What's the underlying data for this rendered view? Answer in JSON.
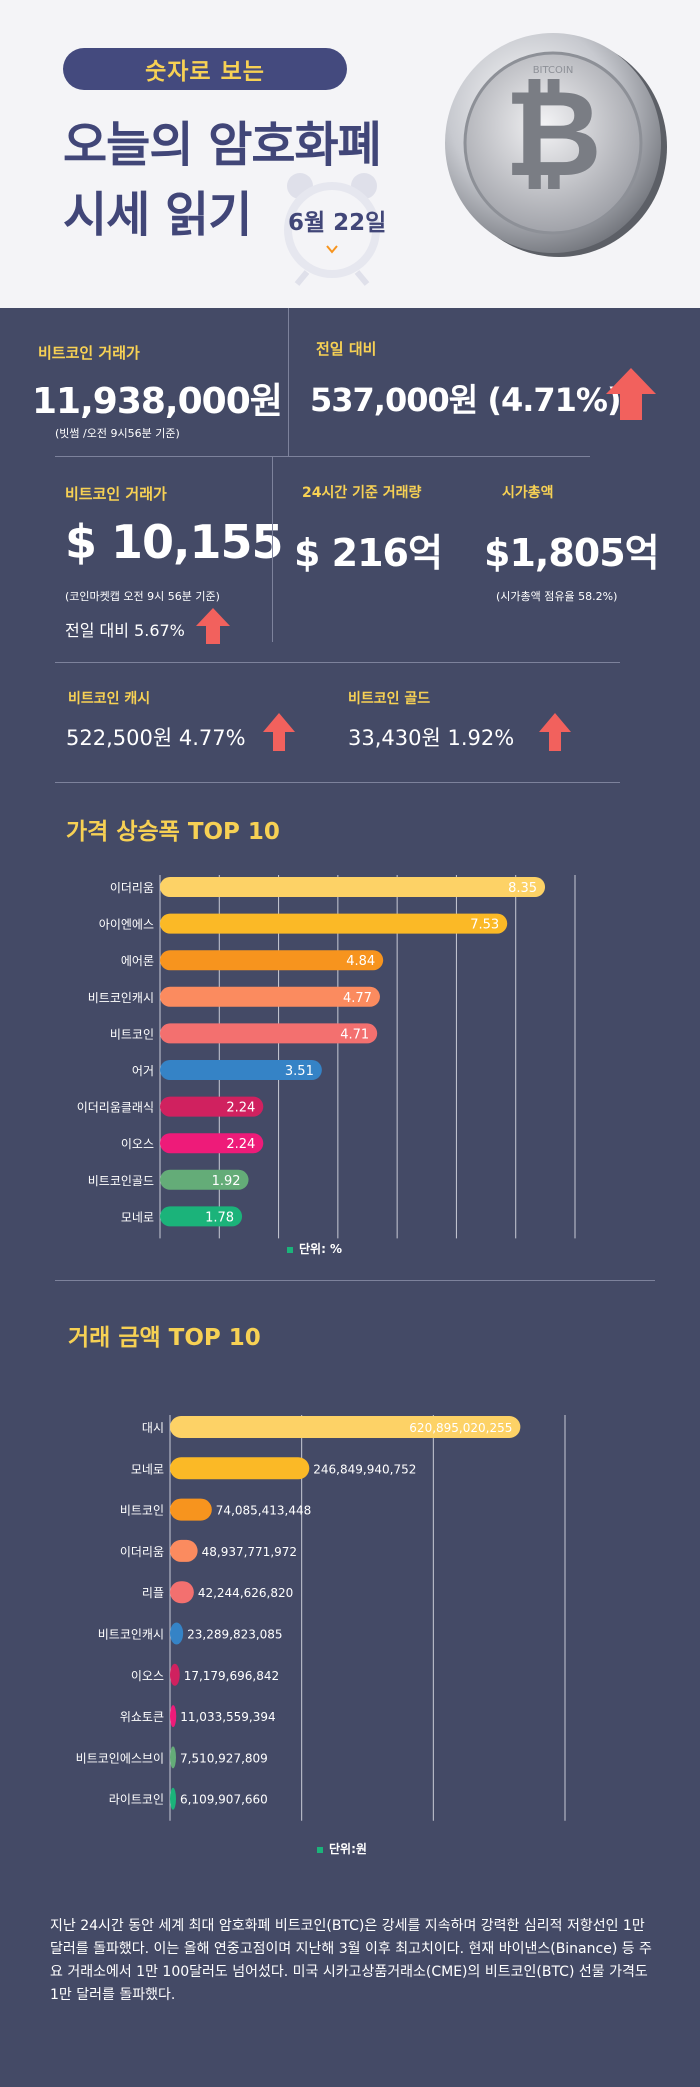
{
  "header": {
    "badge": "숫자로 보는",
    "title_line1": "오늘의 암호화폐",
    "title_line2": "시세 읽기",
    "date": "6월 22일",
    "coin_text": "BITCOIN",
    "coin_symbol": "₿"
  },
  "stats": {
    "btc_krw_label": "비트코인 거래가",
    "btc_krw_value": "11,938,000원",
    "btc_krw_note": "(빗썸 /오전 9시56분 기준)",
    "prev_day_label": "전일 대비",
    "prev_day_value": "537,000원 (4.71%)",
    "btc_usd_label": "비트코인 거래가",
    "btc_usd_value": "$ 10,155",
    "btc_usd_note": "(코인마켓캡 오전 9시 56분 기준)",
    "btc_usd_change": "전일 대비 5.67%",
    "volume_label": "24시간 기준 거래량",
    "volume_value": "$ 216억",
    "mcap_label": "시가총액",
    "mcap_value": "$1,805억",
    "mcap_note": "(시가총액 점유율 58.2%)",
    "bch_label": "비트코인 캐시",
    "bch_value": "522,500원  4.77%",
    "btg_label": "비트코인 골드",
    "btg_value": "33,430원   1.92%"
  },
  "colors": {
    "background": "#444a66",
    "accent": "#f7d154",
    "arrow": "#f2615d"
  },
  "chart_data": [
    {
      "type": "bar",
      "orientation": "horizontal",
      "title": "가격 상승폭 TOP 10",
      "unit_label": "단위: %",
      "categories": [
        "이더리움",
        "아이엔에스",
        "에어론",
        "비트코인캐시",
        "비트코인",
        "어거",
        "이더리움클래식",
        "이오스",
        "비트코인골드",
        "모네로"
      ],
      "values": [
        8.35,
        7.53,
        4.84,
        4.77,
        4.71,
        3.51,
        2.24,
        2.24,
        1.92,
        1.78
      ],
      "value_labels": [
        "8.35",
        "7.53",
        "4.84",
        "4.77",
        "4.71",
        "3.51",
        "2.24",
        "2.24",
        "1.92",
        "1.78"
      ],
      "colors": [
        "#fdd266",
        "#fbb926",
        "#f7941e",
        "#fb8b5f",
        "#f3706f",
        "#3583c6",
        "#d0215f",
        "#ee1b79",
        "#64ac78",
        "#1bb37a"
      ],
      "xlim": [
        0,
        9
      ]
    },
    {
      "type": "bar",
      "orientation": "horizontal",
      "title": "거래 금액 TOP 10",
      "unit_label": "단위:원",
      "categories": [
        "대시",
        "모네로",
        "비트코인",
        "이더리움",
        "리플",
        "비트코인캐시",
        "이오스",
        "위쇼토큰",
        "비트코인에스브이",
        "라이트코인"
      ],
      "values": [
        620895020255,
        246849940752,
        74085413448,
        48937771972,
        42244626820,
        23289823085,
        17179696842,
        11033559394,
        7510927809,
        6109907660
      ],
      "value_labels": [
        "620,895,020,255",
        "246,849,940,752",
        "74,085,413,448",
        "48,937,771,972",
        "42,244,626,820",
        "23,289,823,085",
        "17,179,696,842",
        "11,033,559,394",
        "7,510,927,809",
        "6,109,907,660"
      ],
      "colors": [
        "#fdd266",
        "#fbb926",
        "#f7941e",
        "#fb8b5f",
        "#f3706f",
        "#3583c6",
        "#d0215f",
        "#ee1b79",
        "#64ac78",
        "#1bb37a"
      ],
      "xlim": [
        0,
        700000000000
      ]
    }
  ],
  "footer": {
    "paragraph": "지난 24시간 동안 세계 최대 암호화폐 비트코인(BTC)은 강세를 지속하며 강력한 심리적 저항선인 1만 달러를 돌파했다. 이는 올해 연중고점이며 지난해 3월 이후 최고치이다. 현재 바이낸스(Binance) 등 주요 거래소에서 1만 100달러도 넘어섰다. 미국 시카고상품거래소(CME)의 비트코인(BTC) 선물 가격도 1만 달러를 돌파했다."
  }
}
